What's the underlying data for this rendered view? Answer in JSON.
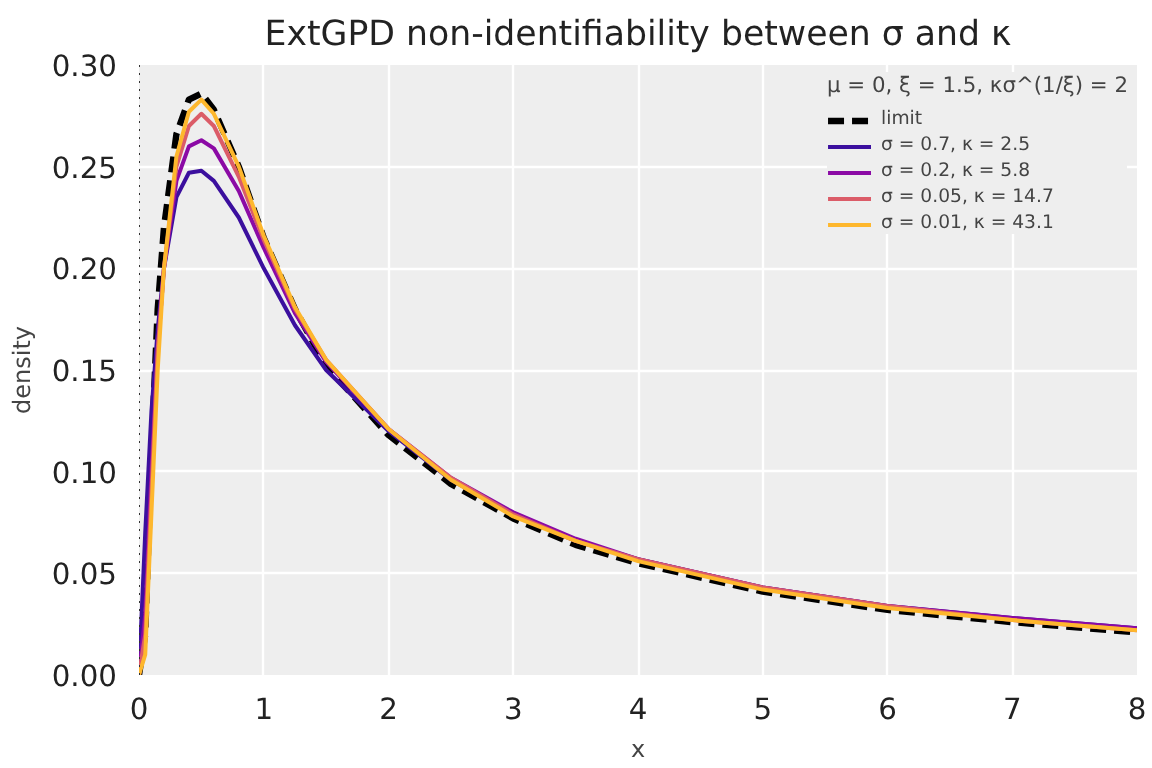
{
  "chart_data": {
    "type": "line",
    "title": "ExtGPD non-identifiability between σ and κ",
    "xlabel": "x",
    "ylabel": "density",
    "legend_title": "μ = 0, ξ = 1.5, κσ^(1/ξ) = 2",
    "x": [
      0,
      0.05,
      0.1,
      0.15,
      0.2,
      0.3,
      0.4,
      0.5,
      0.6,
      0.8,
      1,
      1.25,
      1.5,
      2,
      2.5,
      3,
      3.5,
      4,
      5,
      6,
      7,
      8
    ],
    "series": [
      {
        "name": "limit",
        "color": "#000000",
        "line_style": "dashed",
        "values": [
          0,
          0.02,
          0.11,
          0.18,
          0.22,
          0.266,
          0.283,
          0.286,
          0.278,
          0.25,
          0.215,
          0.18,
          0.152,
          0.118,
          0.094,
          0.077,
          0.064,
          0.055,
          0.041,
          0.032,
          0.026,
          0.021
        ]
      },
      {
        "name": "σ = 0.7, κ = 2.5",
        "color": "#3b0f9e",
        "values": [
          0,
          0.07,
          0.13,
          0.17,
          0.2,
          0.235,
          0.247,
          0.248,
          0.243,
          0.225,
          0.2,
          0.172,
          0.15,
          0.12,
          0.096,
          0.079,
          0.066,
          0.057,
          0.043,
          0.034,
          0.028,
          0.023
        ]
      },
      {
        "name": "σ = 0.2, κ = 5.8",
        "color": "#8b0aa5",
        "values": [
          0,
          0.03,
          0.1,
          0.16,
          0.2,
          0.243,
          0.26,
          0.263,
          0.259,
          0.238,
          0.21,
          0.178,
          0.154,
          0.121,
          0.097,
          0.08,
          0.067,
          0.057,
          0.043,
          0.034,
          0.028,
          0.023
        ]
      },
      {
        "name": "σ = 0.05, κ = 14.7",
        "color": "#db5c68",
        "values": [
          0,
          0.02,
          0.09,
          0.16,
          0.2,
          0.25,
          0.27,
          0.276,
          0.27,
          0.245,
          0.214,
          0.18,
          0.155,
          0.121,
          0.097,
          0.079,
          0.066,
          0.057,
          0.043,
          0.034,
          0.027,
          0.022
        ]
      },
      {
        "name": "σ = 0.01, κ = 43.1",
        "color": "#feb72d",
        "values": [
          0,
          0.01,
          0.08,
          0.15,
          0.2,
          0.255,
          0.277,
          0.283,
          0.276,
          0.25,
          0.216,
          0.181,
          0.155,
          0.121,
          0.096,
          0.078,
          0.066,
          0.056,
          0.042,
          0.033,
          0.027,
          0.022
        ]
      }
    ],
    "xlim": [
      0,
      8
    ],
    "ylim": [
      0,
      0.3
    ],
    "xticks": [
      0,
      1,
      2,
      3,
      4,
      5,
      6,
      7,
      8
    ],
    "yticks": [
      {
        "value": 0,
        "label": "0.00"
      },
      {
        "value": 0.05,
        "label": "0.05"
      },
      {
        "value": 0.1,
        "label": "0.10"
      },
      {
        "value": 0.15,
        "label": "0.15"
      },
      {
        "value": 0.2,
        "label": "0.20"
      },
      {
        "value": 0.25,
        "label": "0.25"
      },
      {
        "value": 0.3,
        "label": "0.30"
      }
    ],
    "ref_lines": [
      {
        "axis": "x",
        "value": 0,
        "color": "#333333",
        "line_style": "dotted"
      }
    ],
    "grid": true,
    "legend": "top right"
  }
}
